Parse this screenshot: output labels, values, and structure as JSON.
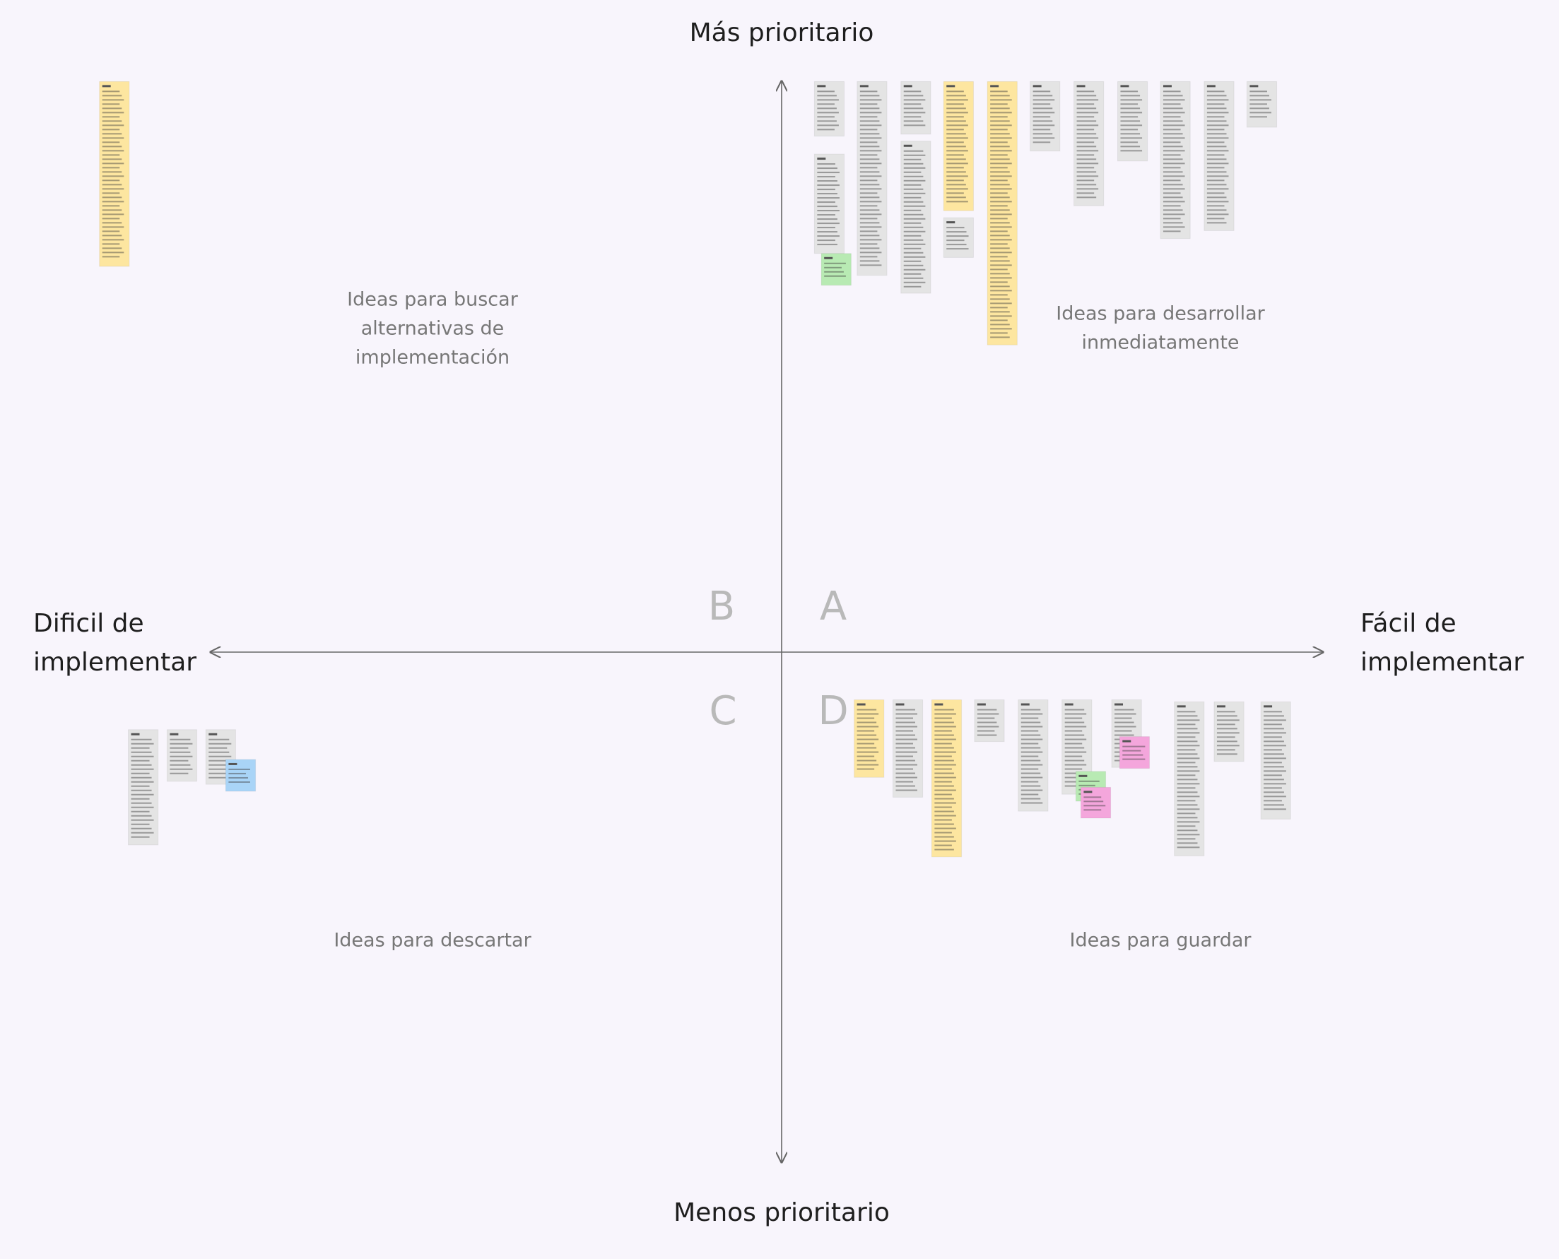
{
  "axes": {
    "top": "Más prioritario",
    "bottom": "Menos prioritario",
    "left": [
      "Dificil de",
      "implementar"
    ],
    "right": [
      "Fácil de",
      "implementar"
    ]
  },
  "quadrants": [
    {
      "letter": "A",
      "label": [
        "Ideas para desarrollar",
        "inmediatamente"
      ]
    },
    {
      "letter": "B",
      "label": [
        "Ideas para buscar",
        "alternativas de",
        "implementación"
      ]
    },
    {
      "letter": "C",
      "label": [
        "Ideas para descartar"
      ]
    },
    {
      "letter": "D",
      "label": [
        "Ideas para guardar"
      ]
    }
  ]
}
